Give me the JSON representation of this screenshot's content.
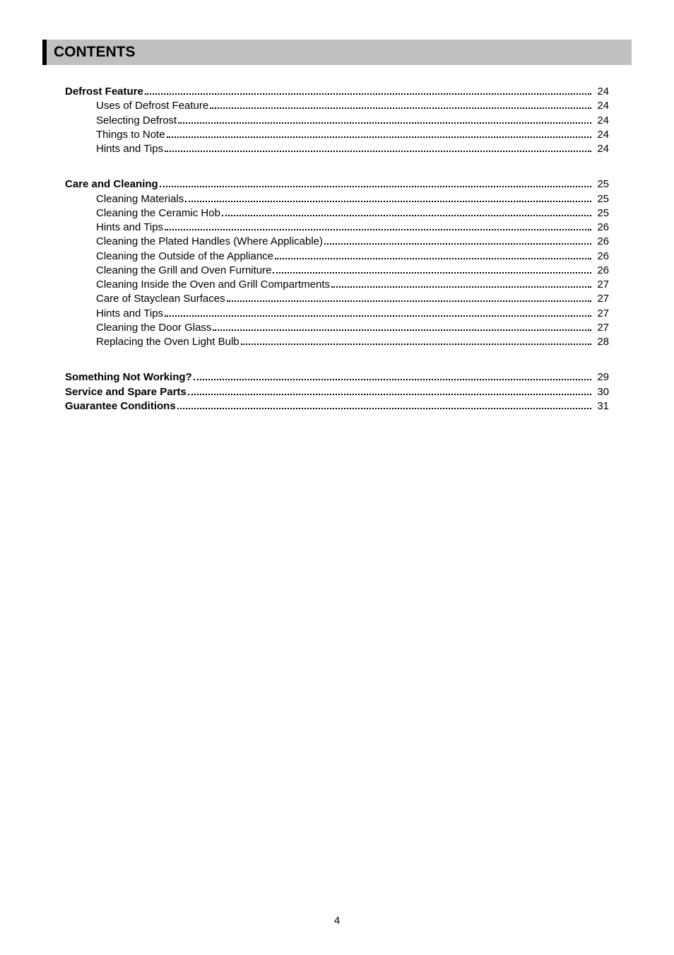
{
  "header": {
    "title": "CONTENTS"
  },
  "sections": [
    {
      "heading": {
        "label": "Defrost Feature",
        "page": "24"
      },
      "items": [
        {
          "label": "Uses of Defrost Feature",
          "page": "24"
        },
        {
          "label": "Selecting Defrost",
          "page": "24"
        },
        {
          "label": "Things to Note",
          "page": "24"
        },
        {
          "label": "Hints and Tips",
          "page": "24"
        }
      ]
    },
    {
      "heading": {
        "label": "Care and Cleaning",
        "page": "25"
      },
      "items": [
        {
          "label": "Cleaning Materials",
          "page": "25"
        },
        {
          "label": "Cleaning the Ceramic Hob",
          "page": "25"
        },
        {
          "label": "Hints and Tips",
          "page": "26"
        },
        {
          "label": "Cleaning the Plated Handles (Where Applicable)",
          "page": "26"
        },
        {
          "label": "Cleaning the Outside of the Appliance",
          "page": "26"
        },
        {
          "label": "Cleaning the Grill and Oven Furniture",
          "page": "26"
        },
        {
          "label": "Cleaning Inside the Oven and Grill Compartments",
          "page": "27"
        },
        {
          "label": "Care of Stayclean Surfaces",
          "page": "27"
        },
        {
          "label": "Hints and Tips",
          "page": "27"
        },
        {
          "label": "Cleaning the Door Glass",
          "page": "27"
        },
        {
          "label": "Replacing the Oven Light Bulb",
          "page": "28"
        }
      ]
    }
  ],
  "tail": [
    {
      "label": "Something Not Working?",
      "page": "29"
    },
    {
      "label": "Service and Spare Parts",
      "page": "30"
    },
    {
      "label": "Guarantee Conditions",
      "page": "31"
    }
  ],
  "footer": {
    "page_number": "4"
  },
  "style": {
    "background_color": "#ffffff",
    "header_bg": "#c0c0c0",
    "header_border": "#000000",
    "text_color": "#000000",
    "font_family": "Arial",
    "title_fontsize": 21,
    "body_fontsize": 15,
    "leader_style": "dotted"
  }
}
